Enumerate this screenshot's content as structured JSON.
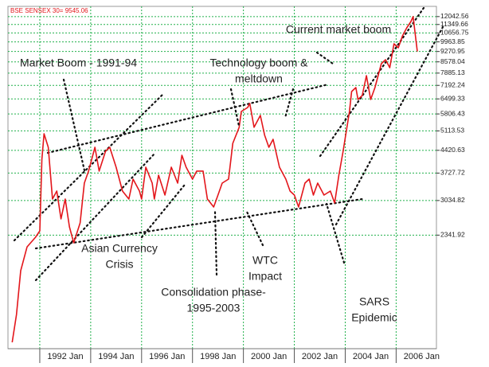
{
  "chart_data": {
    "type": "line",
    "label": "BSE SENSEX 30= 9545.06",
    "color": "#e3161b",
    "log_scale": true,
    "grid": true,
    "x": [
      "1990-12",
      "1991-02",
      "1991-04",
      "1991-07",
      "1991-11",
      "1992-01",
      "1992-02",
      "1992-03",
      "1992-05",
      "1992-07",
      "1992-09",
      "1992-11",
      "1993-01",
      "1993-03",
      "1993-05",
      "1993-08",
      "1993-10",
      "1993-12",
      "1994-03",
      "1994-05",
      "1994-08",
      "1994-10",
      "1995-01",
      "1995-04",
      "1995-07",
      "1995-09",
      "1995-12",
      "1996-01",
      "1996-03",
      "1996-06",
      "1996-07",
      "1996-09",
      "1996-12",
      "1997-03",
      "1997-06",
      "1997-08",
      "1997-10",
      "1998-01",
      "1998-03",
      "1998-06",
      "1998-08",
      "1998-11",
      "1999-01",
      "1999-03",
      "1999-06",
      "1999-08",
      "1999-11",
      "1999-12",
      "2000-03",
      "2000-04",
      "2000-06",
      "2000-09",
      "2000-11",
      "2001-01",
      "2001-03",
      "2001-06",
      "2001-09",
      "2001-11",
      "2002-01",
      "2002-03",
      "2002-06",
      "2002-08",
      "2002-10",
      "2002-12",
      "2003-03",
      "2003-06",
      "2003-08",
      "2003-10",
      "2003-12",
      "2004-03",
      "2004-04",
      "2004-06",
      "2004-07",
      "2004-09",
      "2004-11",
      "2005-01",
      "2005-03",
      "2005-06",
      "2005-08",
      "2005-10",
      "2005-12",
      "2006-02",
      "2006-04",
      "2006-06",
      "2006-08",
      "2006-09",
      "2006-11"
    ],
    "values": [
      1049,
      1292,
      1794,
      2145,
      2305,
      2418,
      4135,
      5007,
      4524,
      3069,
      3258,
      2644,
      3069,
      2491,
      2211,
      2567,
      3458,
      3783,
      4524,
      3783,
      4390,
      4524,
      3896,
      3258,
      3069,
      3563,
      3258,
      3069,
      3896,
      3458,
      3069,
      3671,
      3162,
      3896,
      3458,
      4261,
      3896,
      3563,
      3783,
      3783,
      3069,
      2891,
      3162,
      3458,
      3563,
      4661,
      5252,
      5916,
      6095,
      6281,
      5252,
      5742,
      4948,
      4524,
      4801,
      3896,
      3563,
      3258,
      3162,
      2891,
      3458,
      3563,
      3162,
      3458,
      3162,
      3258,
      2979,
      3671,
      4390,
      5916,
      6868,
      7074,
      6470,
      6665,
      7738,
      6470,
      7074,
      8463,
      8717,
      8214,
      9822,
      9535,
      10425,
      11066,
      11608,
      12042,
      9270
    ],
    "xlim": [
      "1990-10",
      "2007-08"
    ],
    "xticks": [
      {
        "value": "1992-01",
        "label": "1992 Jan"
      },
      {
        "value": "1994-01",
        "label": "1994 Jan"
      },
      {
        "value": "1996-01",
        "label": "1996 Jan"
      },
      {
        "value": "1998-01",
        "label": "1998 Jan"
      },
      {
        "value": "2000-01",
        "label": "2000 Jan"
      },
      {
        "value": "2002-01",
        "label": "2002 Jan"
      },
      {
        "value": "2004-01",
        "label": "2004 Jan"
      },
      {
        "value": "2006-01",
        "label": "2006 Jan"
      }
    ],
    "ylim": [
      1000,
      13000
    ],
    "yticks": [
      12042.56,
      11349.66,
      10656.75,
      9963.85,
      9270.95,
      8578.04,
      7885.13,
      7192.24,
      6499.33,
      5806.43,
      5113.53,
      4420.63,
      3727.72,
      3034.82,
      2341.92
    ],
    "annotations": [
      [
        "Current market boom"
      ],
      [
        "Technology boom &",
        "meltdown"
      ],
      [
        "Market Boom - 1991-94"
      ],
      [
        "Asian Currency",
        "Crisis"
      ],
      [
        "Consolidation phase-",
        "1995-2003"
      ],
      [
        "WTC",
        "Impact"
      ],
      [
        "SARS",
        "Epidemic"
      ]
    ]
  }
}
